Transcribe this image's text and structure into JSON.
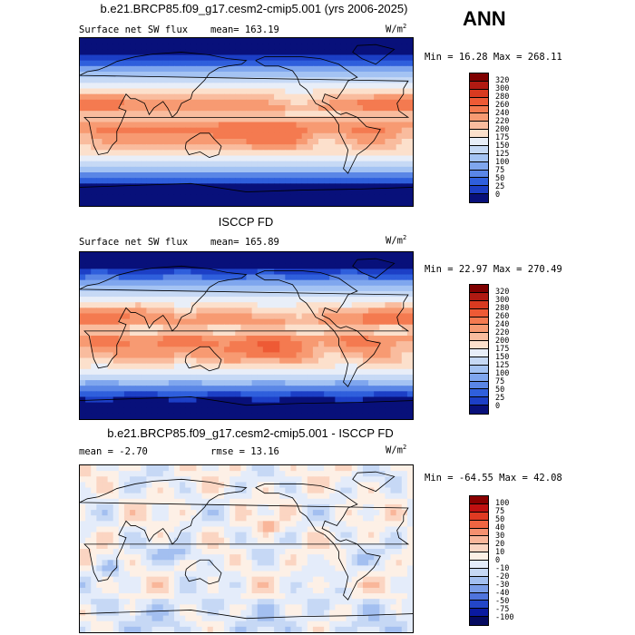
{
  "season": "ANN",
  "panels": [
    {
      "title": "b.e21.BRCP85.f09_g17.cesm2-cmip5.001 (yrs 2006-2025)",
      "left_label": "Surface net SW flux",
      "stat_label": "mean= 163.19",
      "units": "W/m",
      "units_sup": "2",
      "minmax": "Min =  16.28 Max = 268.11",
      "colorbar": {
        "labels": [
          "320",
          "300",
          "280",
          "260",
          "240",
          "220",
          "200",
          "175",
          "150",
          "125",
          "100",
          "75",
          "50",
          "25",
          "0"
        ],
        "colors": [
          "#7f0000",
          "#b01a12",
          "#d93a20",
          "#ee5a35",
          "#f47a50",
          "#f79a72",
          "#f9bc9e",
          "#fce0cc",
          "#e8eef8",
          "#c6d9f5",
          "#a4c3f3",
          "#7fa6ee",
          "#5a86e6",
          "#2f5fdc",
          "#1c3fc6",
          "#08107a"
        ]
      },
      "field": "sw_model"
    },
    {
      "title": "ISCCP FD",
      "left_label": "Surface net SW flux",
      "stat_label": "mean= 165.89",
      "units": "W/m",
      "units_sup": "2",
      "minmax": "Min =  22.97 Max = 270.49",
      "colorbar": {
        "labels": [
          "320",
          "300",
          "280",
          "260",
          "240",
          "220",
          "200",
          "175",
          "150",
          "125",
          "100",
          "75",
          "50",
          "25",
          "0"
        ],
        "colors": [
          "#7f0000",
          "#b01a12",
          "#d93a20",
          "#ee5a35",
          "#f47a50",
          "#f79a72",
          "#f9bc9e",
          "#fce0cc",
          "#e8eef8",
          "#c6d9f5",
          "#a4c3f3",
          "#7fa6ee",
          "#5a86e6",
          "#2f5fdc",
          "#1c3fc6",
          "#08107a"
        ]
      },
      "field": "sw_obs"
    },
    {
      "title": "b.e21.BRCP85.f09_g17.cesm2-cmip5.001 - ISCCP FD",
      "left_label": "mean =  -2.70",
      "stat_label": "rmse =  13.16",
      "units": "W/m",
      "units_sup": "2",
      "minmax": "Min = -64.55 Max =  42.08",
      "colorbar": {
        "labels": [
          "100",
          "75",
          "50",
          "40",
          "30",
          "20",
          "10",
          "0",
          "-10",
          "-20",
          "-30",
          "-40",
          "-50",
          "-75",
          "-100"
        ],
        "colors": [
          "#8a0000",
          "#c01010",
          "#e03a22",
          "#ef6542",
          "#f5906f",
          "#f9b69a",
          "#fbd5c2",
          "#fdf0e6",
          "#e4ecfa",
          "#c6d8f5",
          "#a3bff0",
          "#7a9de8",
          "#4f74dd",
          "#2346c8",
          "#0a1aa0",
          "#050a60"
        ]
      },
      "field": "sw_diff"
    }
  ]
}
